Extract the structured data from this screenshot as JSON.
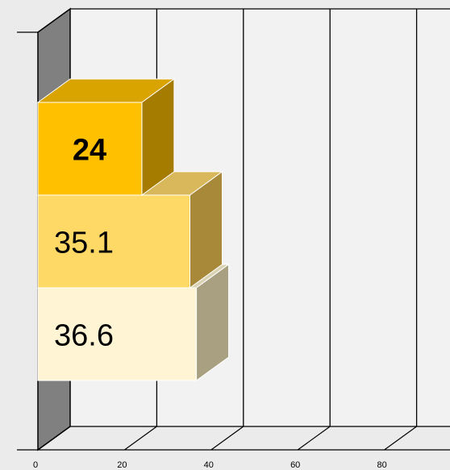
{
  "chart_data": {
    "type": "bar",
    "orientation": "horizontal",
    "style": "3d-stacked-boxes",
    "title": "",
    "xlabel": "",
    "ylabel": "",
    "x_ticks": [
      "0",
      "20",
      "40",
      "60",
      "80"
    ],
    "xlim": [
      0,
      100
    ],
    "grid": true,
    "series": [
      {
        "label": "36.6",
        "value": 36.6,
        "color": "#fff4d4",
        "top_color": "#d9d2b3",
        "side_color": "#a8a080",
        "label_bold": false
      },
      {
        "label": "35.1",
        "value": 35.1,
        "color": "#ffd966",
        "top_color": "#d8b85a",
        "side_color": "#a8893a",
        "label_bold": false
      },
      {
        "label": "24",
        "value": 24,
        "color": "#ffc000",
        "top_color": "#d9a300",
        "side_color": "#a67c00",
        "label_bold": true
      }
    ],
    "colors": {
      "background": "#ebebeb",
      "back_wall": "#f2f2f2",
      "side_wall": "#808080",
      "grid": "#000000"
    }
  }
}
